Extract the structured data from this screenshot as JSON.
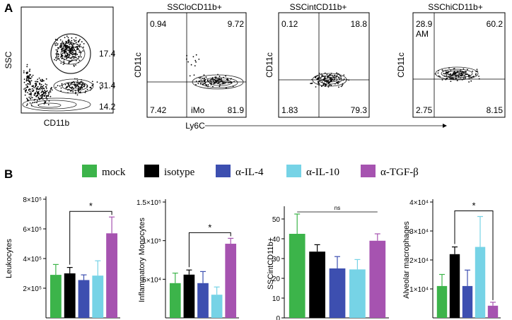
{
  "panels": {
    "a": "A",
    "b": "B"
  },
  "flow": {
    "plot1": {
      "ylabel": "SSC",
      "xlabel": "CD11b",
      "gates": [
        "17.4",
        "31.4",
        "14.2"
      ]
    },
    "plot2": {
      "title": "SSCloCD11b+",
      "ylabel": "CD11c",
      "quadrants": [
        "0.94",
        "9.72",
        "7.42",
        "81.9"
      ],
      "annotation": "iMo"
    },
    "plot3": {
      "title": "SSCintCD11b+",
      "ylabel": "CD11c",
      "quadrants": [
        "0.12",
        "18.8",
        "1.83",
        "79.3"
      ]
    },
    "plot4": {
      "title": "SSChiCD11b+",
      "ylabel": "CD11c",
      "quadrants": [
        "28.9",
        "60.2",
        "2.75",
        "8.15"
      ],
      "annotation": "AM"
    },
    "shared_xlabel": "Ly6C"
  },
  "colors": {
    "mock": "#3cb44a",
    "isotype": "#000000",
    "il4": "#3d4fb0",
    "il10": "#76d3e6",
    "tgfb": "#a653b0"
  },
  "chart_data": [
    {
      "type": "bar",
      "title": "",
      "ylabel": "Leukocytes",
      "categories": [
        "mock",
        "isotype",
        "α-IL-4",
        "α-IL-10",
        "α-TGF-β"
      ],
      "values": [
        290000,
        300000,
        255000,
        285000,
        570000
      ],
      "errors": [
        70000,
        40000,
        35000,
        100000,
        110000
      ],
      "ylim": [
        0,
        800000
      ],
      "ytick_labels": [
        "2×10⁵",
        "4×10⁵",
        "6×10⁵",
        "8×10⁵"
      ],
      "yticks": [
        200000,
        400000,
        600000,
        800000
      ],
      "significance": {
        "from": 1,
        "to": 4,
        "label": "*"
      }
    },
    {
      "type": "bar",
      "title": "",
      "ylabel": "Inflammatory Monocytes",
      "categories": [
        "mock",
        "isotype",
        "α-IL-4",
        "α-IL-10",
        "α-TGF-β"
      ],
      "values": [
        45000,
        56000,
        45000,
        30000,
        96000
      ],
      "errors": [
        13000,
        6000,
        15000,
        10000,
        7000
      ],
      "ylim": [
        0,
        150000
      ],
      "ytick_labels": [
        "5×10⁴",
        "1×10⁵",
        "1.5×10⁵"
      ],
      "yticks": [
        50000,
        100000,
        150000
      ],
      "significance": {
        "from": 1,
        "to": 4,
        "label": "*"
      }
    },
    {
      "type": "bar",
      "title": "",
      "ylabel": "SSCintCD11b+",
      "categories": [
        "mock",
        "isotype",
        "α-IL-4",
        "α-IL-10",
        "α-TGF-β"
      ],
      "values": [
        42.5,
        33.5,
        25,
        24.5,
        39
      ],
      "errors": [
        10,
        3.5,
        6,
        5,
        3.5
      ],
      "ylim": [
        0,
        55
      ],
      "ytick_labels": [
        "0",
        "10",
        "20",
        "30",
        "40",
        "50"
      ],
      "yticks": [
        0,
        10,
        20,
        30,
        40,
        50
      ],
      "significance": {
        "from": 0,
        "to": 4,
        "label": "ns"
      }
    },
    {
      "type": "bar",
      "title": "",
      "ylabel": "Alveolar macrophages",
      "categories": [
        "mock",
        "isotype",
        "α-IL-4",
        "α-IL-10",
        "α-TGF-β"
      ],
      "values": [
        11000,
        22000,
        11000,
        24500,
        4200
      ],
      "errors": [
        4000,
        2500,
        5500,
        10500,
        1200
      ],
      "ylim": [
        0,
        40000
      ],
      "ytick_labels": [
        "1×10⁴",
        "2×10⁴",
        "3×10⁴",
        "4×10⁴"
      ],
      "yticks": [
        10000,
        20000,
        30000,
        40000
      ],
      "significance": {
        "from": 1,
        "to": 4,
        "label": "*"
      }
    }
  ],
  "legend": [
    "mock",
    "isotype",
    "α-IL-4",
    "α-IL-10",
    "α-TGF-β"
  ]
}
